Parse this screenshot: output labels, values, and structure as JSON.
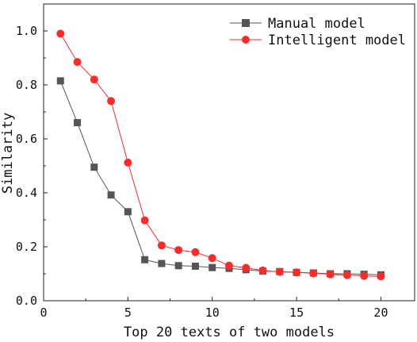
{
  "chart_data": {
    "type": "line",
    "xlabel": "Top 20 texts of two models",
    "ylabel": "Similarity",
    "xlim": [
      0,
      22
    ],
    "ylim": [
      0,
      1.1
    ],
    "x_ticks": [
      "0",
      "5",
      "10",
      "15",
      "20"
    ],
    "y_ticks": [
      "0.0",
      "0.2",
      "0.4",
      "0.6",
      "0.8",
      "1.0"
    ],
    "grid": false,
    "legend_position": "top-right",
    "x": [
      1,
      2,
      3,
      4,
      5,
      6,
      7,
      8,
      9,
      10,
      11,
      12,
      13,
      14,
      15,
      16,
      17,
      18,
      19,
      20
    ],
    "series": [
      {
        "name": "Manual model",
        "color": "#555555",
        "marker": "square",
        "values": [
          0.815,
          0.66,
          0.495,
          0.392,
          0.33,
          0.152,
          0.138,
          0.13,
          0.128,
          0.123,
          0.12,
          0.115,
          0.11,
          0.108,
          0.105,
          0.103,
          0.1,
          0.1,
          0.098,
          0.096
        ]
      },
      {
        "name": "Intelligent model",
        "color": "#ff2a2a",
        "marker": "circle",
        "values": [
          0.99,
          0.885,
          0.82,
          0.74,
          0.512,
          0.298,
          0.205,
          0.188,
          0.18,
          0.158,
          0.13,
          0.122,
          0.112,
          0.107,
          0.105,
          0.102,
          0.098,
          0.095,
          0.092,
          0.09
        ]
      }
    ]
  }
}
